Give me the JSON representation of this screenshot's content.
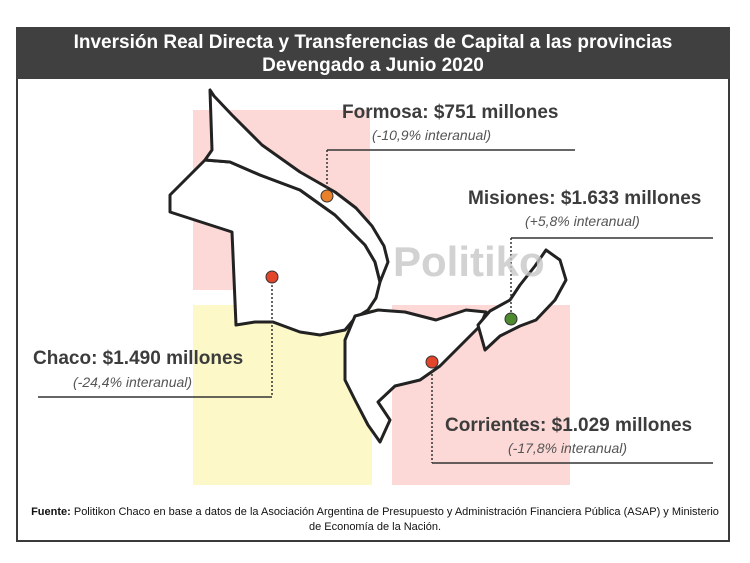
{
  "title": {
    "line1": "Inversión Real Directa y Transferencias de Capital a las provincias",
    "line2": "Devengado a Junio 2020"
  },
  "watermark": "Politiko",
  "provinces": [
    {
      "name": "Formosa",
      "label": "Formosa: $751 millones",
      "change": "(-10,9% interanual)",
      "dot_color": "#e9802a"
    },
    {
      "name": "Misiones",
      "label": "Misiones: $1.633 millones",
      "change": "(+5,8% interanual)",
      "dot_color": "#4e8a30"
    },
    {
      "name": "Chaco",
      "label": "Chaco: $1.490 millones",
      "change": "(-24,4% interanual)",
      "dot_color": "#e2452a"
    },
    {
      "name": "Corrientes",
      "label": "Corrientes: $1.029 millones",
      "change": "(-17,8% interanual)",
      "dot_color": "#e2452a"
    }
  ],
  "source": {
    "bold": "Fuente:",
    "text": " Politikon Chaco en base a datos de la Asociación Argentina de Presupuesto y Administración Financiera Pública (ASAP) y Ministerio de Economía de la Nación."
  }
}
